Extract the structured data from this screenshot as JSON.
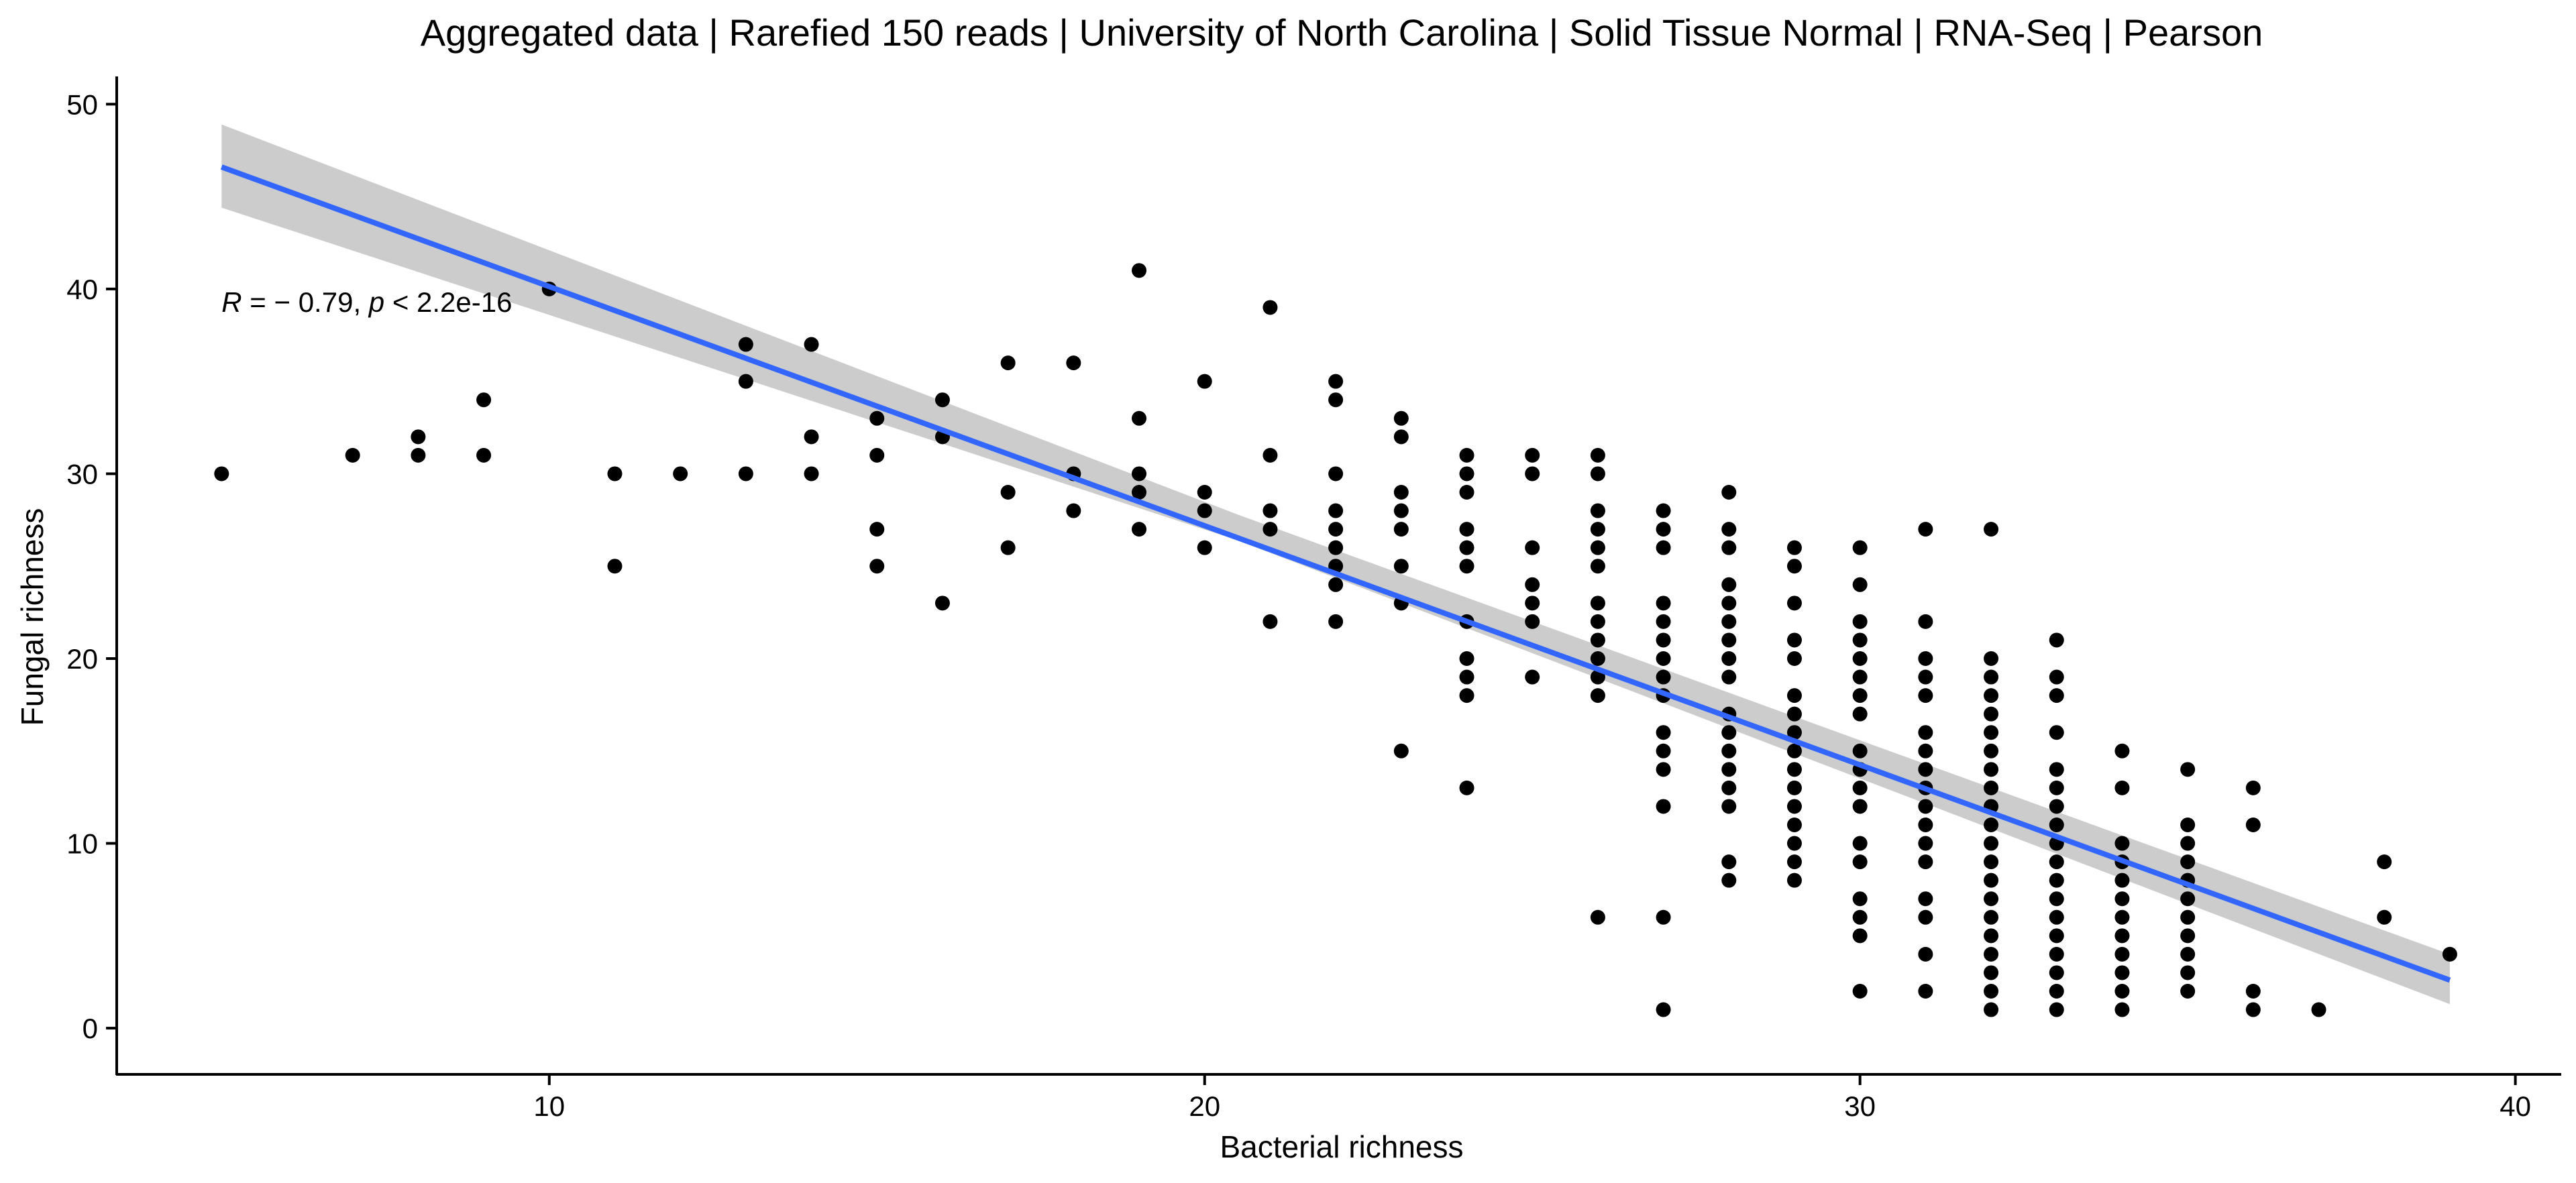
{
  "chart_data": {
    "type": "scatter",
    "title": "Aggregated data | Rarefied 150 reads | University of North Carolina | Solid Tissue Normal | RNA-Seq | Pearson",
    "xlabel": "Bacterial richness",
    "ylabel": "Fungal richness",
    "xlim": [
      3.4,
      40.7
    ],
    "ylim": [
      -2.5,
      51.5
    ],
    "x_ticks": [
      10,
      20,
      30,
      40
    ],
    "y_ticks": [
      0,
      10,
      20,
      30,
      40,
      50
    ],
    "grid": false,
    "legend": "none",
    "annotation": {
      "r_symbol": "R",
      "r_text": " = − 0.79, ",
      "p_symbol": "p",
      "p_text": " < 2.2e-16",
      "x": 5,
      "y": 39.3
    },
    "regression": {
      "x_start": 5,
      "y_start": 46.6,
      "x_end": 39,
      "y_end": 2.6,
      "ci_upper_start": 48.9,
      "ci_lower_start": 44.4,
      "ci_upper_mid": 27.8,
      "ci_lower_mid": 26.4,
      "ci_upper_end": 4.0,
      "ci_lower_end": 1.3,
      "x_mid": 20.5
    },
    "colors": {
      "points": "#000000",
      "line": "#3366ff",
      "ribbon": "#cccccc",
      "axis": "#000000"
    },
    "points": [
      [
        5,
        30
      ],
      [
        7,
        31
      ],
      [
        8,
        32
      ],
      [
        8,
        31
      ],
      [
        9,
        34
      ],
      [
        9,
        31
      ],
      [
        10,
        40
      ],
      [
        11,
        30
      ],
      [
        11,
        25
      ],
      [
        12,
        30
      ],
      [
        13,
        37
      ],
      [
        13,
        35
      ],
      [
        13,
        30
      ],
      [
        14,
        37
      ],
      [
        14,
        32
      ],
      [
        14,
        30
      ],
      [
        15,
        33
      ],
      [
        15,
        31
      ],
      [
        15,
        27
      ],
      [
        15,
        25
      ],
      [
        16,
        34
      ],
      [
        16,
        32
      ],
      [
        16,
        23
      ],
      [
        17,
        36
      ],
      [
        17,
        29
      ],
      [
        17,
        26
      ],
      [
        18,
        36
      ],
      [
        18,
        30
      ],
      [
        18,
        28
      ],
      [
        19,
        41
      ],
      [
        19,
        33
      ],
      [
        19,
        30
      ],
      [
        19,
        29
      ],
      [
        19,
        27
      ],
      [
        20,
        35
      ],
      [
        20,
        29
      ],
      [
        20,
        28
      ],
      [
        20,
        26
      ],
      [
        21,
        39
      ],
      [
        21,
        31
      ],
      [
        21,
        28
      ],
      [
        21,
        27
      ],
      [
        21,
        22
      ],
      [
        22,
        35
      ],
      [
        22,
        34
      ],
      [
        22,
        30
      ],
      [
        22,
        28
      ],
      [
        22,
        27
      ],
      [
        22,
        26
      ],
      [
        22,
        25
      ],
      [
        22,
        24
      ],
      [
        22,
        22
      ],
      [
        23,
        33
      ],
      [
        23,
        32
      ],
      [
        23,
        29
      ],
      [
        23,
        28
      ],
      [
        23,
        27
      ],
      [
        23,
        25
      ],
      [
        23,
        23
      ],
      [
        23,
        15
      ],
      [
        24,
        31
      ],
      [
        24,
        30
      ],
      [
        24,
        29
      ],
      [
        24,
        27
      ],
      [
        24,
        26
      ],
      [
        24,
        25
      ],
      [
        24,
        22
      ],
      [
        24,
        20
      ],
      [
        24,
        19
      ],
      [
        24,
        18
      ],
      [
        24,
        13
      ],
      [
        25,
        31
      ],
      [
        25,
        30
      ],
      [
        25,
        26
      ],
      [
        25,
        24
      ],
      [
        25,
        23
      ],
      [
        25,
        22
      ],
      [
        25,
        19
      ],
      [
        26,
        31
      ],
      [
        26,
        30
      ],
      [
        26,
        28
      ],
      [
        26,
        27
      ],
      [
        26,
        26
      ],
      [
        26,
        25
      ],
      [
        26,
        23
      ],
      [
        26,
        22
      ],
      [
        26,
        21
      ],
      [
        26,
        20
      ],
      [
        26,
        19
      ],
      [
        26,
        18
      ],
      [
        26,
        6
      ],
      [
        27,
        28
      ],
      [
        27,
        27
      ],
      [
        27,
        26
      ],
      [
        27,
        23
      ],
      [
        27,
        22
      ],
      [
        27,
        21
      ],
      [
        27,
        20
      ],
      [
        27,
        19
      ],
      [
        27,
        18
      ],
      [
        27,
        16
      ],
      [
        27,
        15
      ],
      [
        27,
        14
      ],
      [
        27,
        12
      ],
      [
        27,
        6
      ],
      [
        27,
        1
      ],
      [
        28,
        29
      ],
      [
        28,
        27
      ],
      [
        28,
        26
      ],
      [
        28,
        24
      ],
      [
        28,
        23
      ],
      [
        28,
        22
      ],
      [
        28,
        21
      ],
      [
        28,
        20
      ],
      [
        28,
        19
      ],
      [
        28,
        17
      ],
      [
        28,
        16
      ],
      [
        28,
        15
      ],
      [
        28,
        14
      ],
      [
        28,
        13
      ],
      [
        28,
        12
      ],
      [
        28,
        9
      ],
      [
        28,
        8
      ],
      [
        29,
        26
      ],
      [
        29,
        25
      ],
      [
        29,
        23
      ],
      [
        29,
        21
      ],
      [
        29,
        20
      ],
      [
        29,
        18
      ],
      [
        29,
        17
      ],
      [
        29,
        16
      ],
      [
        29,
        15
      ],
      [
        29,
        14
      ],
      [
        29,
        13
      ],
      [
        29,
        12
      ],
      [
        29,
        11
      ],
      [
        29,
        10
      ],
      [
        29,
        9
      ],
      [
        29,
        8
      ],
      [
        30,
        26
      ],
      [
        30,
        24
      ],
      [
        30,
        22
      ],
      [
        30,
        21
      ],
      [
        30,
        20
      ],
      [
        30,
        19
      ],
      [
        30,
        18
      ],
      [
        30,
        17
      ],
      [
        30,
        15
      ],
      [
        30,
        14
      ],
      [
        30,
        13
      ],
      [
        30,
        12
      ],
      [
        30,
        10
      ],
      [
        30,
        9
      ],
      [
        30,
        7
      ],
      [
        30,
        6
      ],
      [
        30,
        5
      ],
      [
        30,
        2
      ],
      [
        31,
        27
      ],
      [
        31,
        22
      ],
      [
        31,
        20
      ],
      [
        31,
        19
      ],
      [
        31,
        18
      ],
      [
        31,
        16
      ],
      [
        31,
        15
      ],
      [
        31,
        14
      ],
      [
        31,
        13
      ],
      [
        31,
        12
      ],
      [
        31,
        11
      ],
      [
        31,
        10
      ],
      [
        31,
        9
      ],
      [
        31,
        7
      ],
      [
        31,
        6
      ],
      [
        31,
        4
      ],
      [
        31,
        2
      ],
      [
        32,
        27
      ],
      [
        32,
        20
      ],
      [
        32,
        19
      ],
      [
        32,
        18
      ],
      [
        32,
        17
      ],
      [
        32,
        16
      ],
      [
        32,
        15
      ],
      [
        32,
        14
      ],
      [
        32,
        13
      ],
      [
        32,
        12
      ],
      [
        32,
        11
      ],
      [
        32,
        10
      ],
      [
        32,
        9
      ],
      [
        32,
        8
      ],
      [
        32,
        7
      ],
      [
        32,
        6
      ],
      [
        32,
        5
      ],
      [
        32,
        4
      ],
      [
        32,
        3
      ],
      [
        32,
        2
      ],
      [
        32,
        1
      ],
      [
        33,
        21
      ],
      [
        33,
        19
      ],
      [
        33,
        18
      ],
      [
        33,
        16
      ],
      [
        33,
        14
      ],
      [
        33,
        13
      ],
      [
        33,
        12
      ],
      [
        33,
        11
      ],
      [
        33,
        10
      ],
      [
        33,
        9
      ],
      [
        33,
        8
      ],
      [
        33,
        7
      ],
      [
        33,
        6
      ],
      [
        33,
        5
      ],
      [
        33,
        4
      ],
      [
        33,
        3
      ],
      [
        33,
        2
      ],
      [
        33,
        1
      ],
      [
        34,
        15
      ],
      [
        34,
        13
      ],
      [
        34,
        10
      ],
      [
        34,
        9
      ],
      [
        34,
        8
      ],
      [
        34,
        7
      ],
      [
        34,
        6
      ],
      [
        34,
        5
      ],
      [
        34,
        4
      ],
      [
        34,
        3
      ],
      [
        34,
        2
      ],
      [
        34,
        1
      ],
      [
        35,
        14
      ],
      [
        35,
        11
      ],
      [
        35,
        10
      ],
      [
        35,
        9
      ],
      [
        35,
        8
      ],
      [
        35,
        7
      ],
      [
        35,
        6
      ],
      [
        35,
        5
      ],
      [
        35,
        4
      ],
      [
        35,
        3
      ],
      [
        35,
        2
      ],
      [
        36,
        13
      ],
      [
        36,
        11
      ],
      [
        36,
        2
      ],
      [
        36,
        1
      ],
      [
        37,
        1
      ],
      [
        38,
        9
      ],
      [
        38,
        6
      ],
      [
        39,
        4
      ]
    ]
  }
}
